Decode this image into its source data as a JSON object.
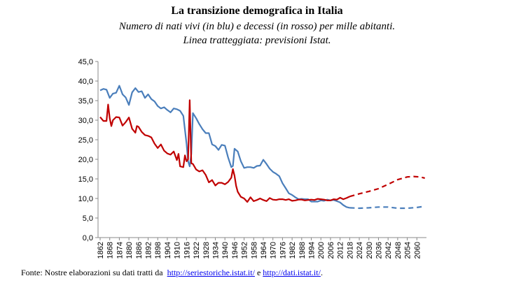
{
  "chart_data": {
    "type": "line",
    "title": "La transizione demografica in Italia",
    "subtitle": [
      "Numero di nati vivi (in blu) e decessi (in rosso) per mille abitanti.",
      "Linea tratteggiata: previsioni Istat."
    ],
    "xlim": [
      1862,
      2066
    ],
    "ylim": [
      0,
      45
    ],
    "xticks": [
      1862,
      1868,
      1874,
      1880,
      1886,
      1892,
      1898,
      1904,
      1910,
      1916,
      1922,
      1928,
      1934,
      1940,
      1946,
      1952,
      1958,
      1964,
      1970,
      1976,
      1982,
      1988,
      1994,
      2000,
      2006,
      2012,
      2018,
      2024,
      2030,
      2036,
      2042,
      2048,
      2054,
      2060
    ],
    "yticks": [
      {
        "value": 0,
        "label": "0,0"
      },
      {
        "value": 5,
        "label": "5,0"
      },
      {
        "value": 10,
        "label": "10,0"
      },
      {
        "value": 15,
        "label": "15,0"
      },
      {
        "value": 20,
        "label": "20,0"
      },
      {
        "value": 25,
        "label": "25,0"
      },
      {
        "value": 30,
        "label": "30,0"
      },
      {
        "value": 35,
        "label": "35,0"
      },
      {
        "value": 40,
        "label": "40,0"
      },
      {
        "value": 45,
        "label": "45,0"
      }
    ],
    "series": [
      {
        "color": "#4a7ebb",
        "dashed": false,
        "x": [
          1862,
          1864,
          1866,
          1868,
          1870,
          1872,
          1874,
          1876,
          1878,
          1880,
          1882,
          1884,
          1886,
          1888,
          1890,
          1892,
          1894,
          1896,
          1898,
          1900,
          1902,
          1904,
          1906,
          1908,
          1910,
          1912,
          1914,
          1916,
          1917,
          1918,
          1919,
          1920,
          1922,
          1924,
          1926,
          1928,
          1930,
          1932,
          1934,
          1936,
          1938,
          1940,
          1942,
          1944,
          1945,
          1946,
          1948,
          1950,
          1952,
          1954,
          1956,
          1958,
          1960,
          1962,
          1964,
          1966,
          1968,
          1970,
          1972,
          1974,
          1976,
          1978,
          1980,
          1982,
          1984,
          1986,
          1988,
          1990,
          1992,
          1994,
          1996,
          1998,
          2000,
          2002,
          2004,
          2006,
          2008,
          2010,
          2012,
          2014,
          2016,
          2018
        ],
        "values": [
          37.6,
          38.0,
          37.8,
          35.7,
          36.8,
          37.0,
          38.8,
          36.6,
          35.8,
          33.9,
          37.1,
          38.2,
          37.2,
          37.4,
          35.7,
          36.6,
          35.4,
          34.8,
          33.6,
          33.0,
          33.3,
          32.6,
          32.0,
          33.0,
          32.8,
          32.4,
          31.1,
          24.0,
          19.5,
          18.2,
          21.4,
          31.8,
          30.5,
          29.0,
          27.7,
          26.7,
          26.7,
          23.8,
          23.4,
          22.4,
          23.7,
          23.5,
          20.5,
          18.0,
          18.3,
          22.7,
          22.0,
          19.5,
          17.8,
          18.0,
          18.0,
          17.8,
          18.3,
          18.4,
          19.9,
          18.8,
          17.6,
          16.8,
          16.3,
          15.7,
          13.9,
          12.6,
          11.3,
          10.9,
          10.3,
          9.8,
          9.9,
          9.8,
          9.8,
          9.2,
          9.2,
          9.2,
          9.5,
          9.4,
          9.7,
          9.5,
          9.6,
          9.3,
          9.0,
          8.3,
          7.8,
          7.6
        ]
      },
      {
        "color": "#4a7ebb",
        "dashed": true,
        "x": [
          2018,
          2024,
          2030,
          2036,
          2042,
          2048,
          2054,
          2060,
          2065
        ],
        "values": [
          7.6,
          7.5,
          7.6,
          7.8,
          7.8,
          7.5,
          7.5,
          7.7,
          8.0
        ]
      },
      {
        "color": "#c00000",
        "dashed": false,
        "x": [
          1862,
          1864,
          1866,
          1867,
          1868,
          1869,
          1870,
          1872,
          1874,
          1876,
          1878,
          1880,
          1882,
          1884,
          1885,
          1886,
          1888,
          1890,
          1892,
          1894,
          1896,
          1898,
          1900,
          1902,
          1904,
          1906,
          1908,
          1910,
          1911,
          1912,
          1914,
          1915,
          1916,
          1917,
          1918,
          1919,
          1920,
          1922,
          1924,
          1926,
          1928,
          1930,
          1932,
          1934,
          1936,
          1938,
          1940,
          1942,
          1944,
          1945,
          1946,
          1947,
          1948,
          1950,
          1952,
          1954,
          1956,
          1958,
          1960,
          1962,
          1964,
          1966,
          1968,
          1970,
          1972,
          1974,
          1976,
          1978,
          1980,
          1982,
          1984,
          1986,
          1988,
          1990,
          1992,
          1994,
          1996,
          1998,
          2000,
          2002,
          2004,
          2006,
          2008,
          2010,
          2012,
          2014,
          2016,
          2018
        ],
        "values": [
          30.8,
          29.8,
          29.8,
          34.0,
          30.5,
          28.5,
          30.0,
          30.8,
          30.7,
          28.6,
          29.5,
          30.7,
          27.8,
          26.8,
          28.5,
          28.3,
          27.0,
          26.2,
          26.0,
          25.6,
          24.0,
          22.9,
          23.8,
          22.2,
          21.5,
          21.2,
          22.0,
          19.8,
          21.4,
          18.2,
          18.0,
          21.0,
          19.5,
          20.0,
          35.1,
          19.0,
          18.8,
          17.4,
          16.9,
          17.2,
          16.0,
          14.1,
          14.7,
          13.3,
          14.0,
          14.0,
          13.6,
          14.2,
          15.3,
          17.5,
          15.8,
          13.2,
          11.7,
          10.4,
          10.0,
          9.1,
          10.3,
          9.3,
          9.6,
          10.0,
          9.6,
          9.3,
          10.1,
          9.7,
          9.6,
          9.8,
          9.8,
          9.6,
          9.8,
          9.4,
          9.5,
          9.7,
          9.7,
          9.5,
          9.6,
          9.7,
          9.6,
          9.9,
          9.8,
          9.7,
          9.5,
          9.5,
          9.8,
          9.7,
          10.2,
          9.8,
          10.1,
          10.5
        ]
      },
      {
        "color": "#c00000",
        "dashed": true,
        "x": [
          2018,
          2024,
          2030,
          2036,
          2042,
          2048,
          2054,
          2058,
          2062,
          2065
        ],
        "values": [
          10.5,
          11.2,
          11.8,
          12.5,
          13.6,
          14.8,
          15.5,
          15.6,
          15.5,
          15.2
        ]
      }
    ]
  },
  "source": {
    "prefix": "Fonte: Nostre elaborazioni su dati tratti da",
    "links": [
      "http://seriestoriche.istat.it/",
      "http://dati.istat.it/"
    ],
    "joiner": "e",
    "suffix": "."
  }
}
